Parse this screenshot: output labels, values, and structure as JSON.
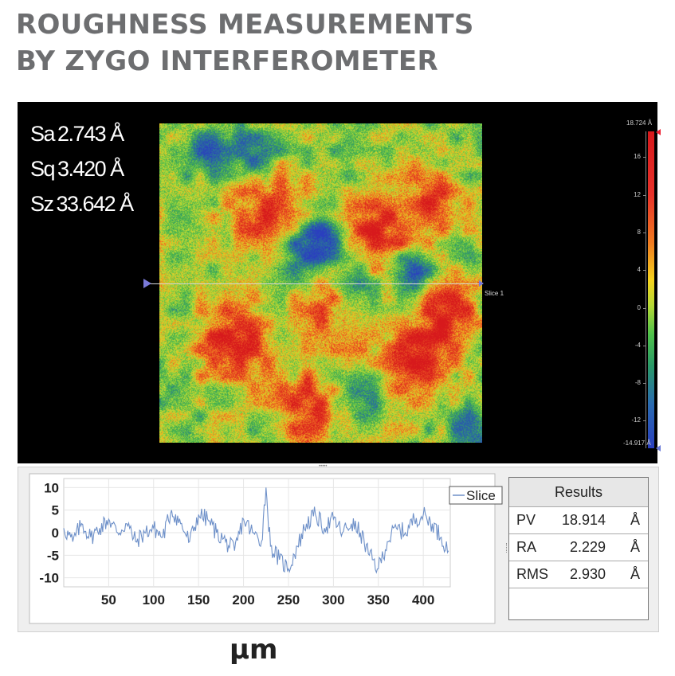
{
  "title": {
    "line1": "ROUGHNESS MEASUREMENTS",
    "line2": "BY ZYGO INTERFEROMETER"
  },
  "stats": [
    {
      "label": "Sa",
      "value": "2.743 Å"
    },
    {
      "label": "Sq",
      "value": "3.420 Å"
    },
    {
      "label": "Sz",
      "value": "33.642 Å"
    }
  ],
  "slice_label": "Slice 1",
  "colorbar": {
    "max_label": "18.724 Å",
    "min_label": "-14.917 Å",
    "ticks": [
      16,
      12,
      8,
      4,
      0,
      -4,
      -8,
      -12
    ],
    "range": [
      -14.917,
      18.724
    ]
  },
  "results": {
    "header": "Results",
    "rows": [
      {
        "key": "PV",
        "value": "18.914",
        "unit": "Å"
      },
      {
        "key": "RA",
        "value": "2.229",
        "unit": "Å"
      },
      {
        "key": "RMS",
        "value": "2.930",
        "unit": "Å"
      }
    ]
  },
  "x_unit_label": "μm",
  "colors": {
    "line": "#6f91c9",
    "panel_bg": "#000000",
    "title": "#6d6e70"
  },
  "chart_data": [
    {
      "type": "heatmap",
      "description_colormap": [
        "#2a3fbf",
        "#2a9a68",
        "#4fc24a",
        "#f5d31e",
        "#f07a20",
        "#d7191c"
      ],
      "zlim": [
        -14.917,
        18.724
      ]
    },
    {
      "type": "line",
      "legend": "Slice",
      "legend_position": "top-right",
      "xlim": [
        0,
        430
      ],
      "ylim": [
        -12,
        12
      ],
      "xticks": [
        50,
        100,
        150,
        200,
        250,
        300,
        350,
        400
      ],
      "yticks": [
        10,
        5,
        0,
        -5,
        -10
      ],
      "grid": true,
      "series": [
        {
          "name": "Slice",
          "x": [
            0,
            10,
            20,
            30,
            40,
            50,
            60,
            70,
            80,
            90,
            100,
            110,
            120,
            130,
            140,
            150,
            160,
            170,
            180,
            190,
            200,
            210,
            220,
            225,
            230,
            240,
            250,
            260,
            270,
            280,
            290,
            300,
            310,
            320,
            330,
            340,
            350,
            360,
            370,
            380,
            390,
            400,
            410,
            420,
            428
          ],
          "y": [
            1,
            -2,
            2,
            -1,
            1,
            3,
            0,
            2,
            -2,
            0,
            1,
            -1,
            5,
            2,
            -2,
            4,
            3,
            0,
            -2,
            -4,
            3,
            0,
            -2,
            10,
            -3,
            -6,
            -8,
            -3,
            2,
            4,
            1,
            3,
            0,
            2,
            0,
            -5,
            -8,
            -2,
            1,
            0,
            3,
            4,
            2,
            -1,
            -4
          ]
        }
      ]
    }
  ]
}
